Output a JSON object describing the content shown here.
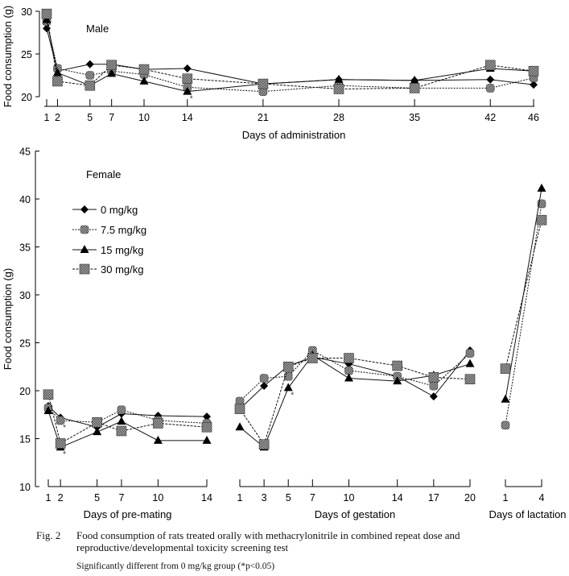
{
  "chart_data": [
    {
      "id": "male",
      "type": "line",
      "panel_label": "Male",
      "title": "",
      "xlabel": "Days of administration",
      "ylabel": "Food consumption (g)",
      "ylim": [
        20,
        30
      ],
      "yticks": [
        20,
        25,
        30
      ],
      "x": [
        1,
        2,
        5,
        7,
        10,
        14,
        21,
        28,
        35,
        42,
        46
      ],
      "xticks": [
        1,
        2,
        5,
        7,
        10,
        14,
        21,
        28,
        35,
        42,
        46
      ],
      "grid": false,
      "series": [
        {
          "name": "0 mg/kg",
          "values": [
            28.0,
            23.0,
            23.8,
            23.8,
            23.2,
            23.3,
            21.5,
            22.0,
            21.9,
            22.0,
            21.4
          ]
        },
        {
          "name": "7.5 mg/kg",
          "values": [
            28.8,
            23.3,
            22.5,
            23.0,
            22.6,
            21.1,
            20.6,
            21.3,
            21.0,
            21.0,
            22.2
          ]
        },
        {
          "name": "15 mg/kg",
          "values": [
            29.0,
            22.8,
            21.3,
            22.7,
            21.8,
            20.6,
            21.5,
            22.0,
            21.9,
            23.3,
            23.0
          ]
        },
        {
          "name": "30 mg/kg",
          "values": [
            29.7,
            21.8,
            21.3,
            23.7,
            23.2,
            22.1,
            21.5,
            20.9,
            21.0,
            23.7,
            23.0
          ]
        }
      ],
      "annotations": [
        {
          "text": "*",
          "x": 14,
          "series": "15 mg/kg"
        }
      ]
    },
    {
      "id": "female",
      "type": "line",
      "panel_label": "Female",
      "title": "",
      "ylabel": "Food consumption (g)",
      "ylim": [
        10,
        45
      ],
      "yticks": [
        10,
        15,
        20,
        25,
        30,
        35,
        40,
        45
      ],
      "grid": false,
      "legend": {
        "placement": "top-left",
        "entries": [
          "0 mg/kg",
          "7.5 mg/kg",
          "15 mg/kg",
          "30 mg/kg"
        ]
      },
      "segments": [
        {
          "xlabel": "Days of pre-mating",
          "x": [
            1,
            2,
            5,
            7,
            10,
            14
          ],
          "series": [
            {
              "name": "0 mg/kg",
              "values": [
                18.4,
                17.2,
                16.2,
                17.6,
                17.4,
                17.3
              ]
            },
            {
              "name": "7.5 mg/kg",
              "values": [
                18.2,
                16.9,
                16.7,
                18.0,
                16.9,
                16.6
              ]
            },
            {
              "name": "15 mg/kg",
              "values": [
                17.9,
                14.1,
                15.7,
                16.8,
                14.8,
                14.8
              ]
            },
            {
              "name": "30 mg/kg",
              "values": [
                19.6,
                14.5,
                16.7,
                15.8,
                16.6,
                16.2
              ]
            }
          ],
          "annotations": [
            {
              "text": "*",
              "x": 2,
              "series": "7.5 mg/kg"
            },
            {
              "text": "*",
              "x": 2,
              "series": "15 mg/kg"
            }
          ]
        },
        {
          "xlabel": "Days of gestation",
          "x": [
            1,
            3,
            5,
            7,
            10,
            14,
            17,
            20
          ],
          "series": [
            {
              "name": "0 mg/kg",
              "values": [
                18.1,
                20.5,
                22.6,
                23.5,
                22.8,
                21.5,
                19.4,
                24.2
              ]
            },
            {
              "name": "7.5 mg/kg",
              "values": [
                18.9,
                21.3,
                21.5,
                24.2,
                22.1,
                21.5,
                20.5,
                23.9
              ]
            },
            {
              "name": "15 mg/kg",
              "values": [
                16.2,
                14.1,
                20.3,
                23.7,
                21.3,
                21.0,
                21.6,
                22.8
              ]
            },
            {
              "name": "30 mg/kg",
              "values": [
                18.1,
                14.4,
                22.5,
                23.4,
                23.4,
                22.6,
                21.4,
                21.2
              ]
            }
          ],
          "annotations": [
            {
              "text": "*",
              "x": 5,
              "series": "15 mg/kg"
            }
          ]
        },
        {
          "xlabel": "Days of lactation",
          "x": [
            1,
            4
          ],
          "series": [
            {
              "name": "7.5 mg/kg",
              "values": [
                16.4,
                39.5
              ]
            },
            {
              "name": "15 mg/kg",
              "values": [
                19.1,
                41.1
              ]
            },
            {
              "name": "30 mg/kg",
              "values": [
                22.3,
                37.8
              ]
            }
          ],
          "annotations": []
        }
      ]
    }
  ],
  "caption": {
    "fig_no": "Fig. 2",
    "text": "Food consumption of rats treated orally with methacrylonitrile in combined repeat dose and reproductive/developmental toxicity screening test",
    "note": "Significantly different from 0 mg/kg group (*p<0.05)"
  }
}
